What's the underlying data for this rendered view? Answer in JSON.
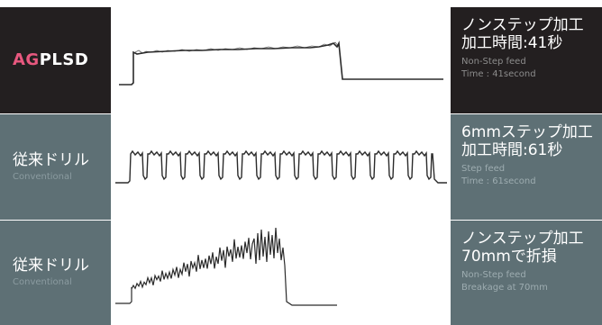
{
  "rows": [
    {
      "brand": {
        "accent": "AG",
        "rest": "PLSD",
        "accent_color": "#e8587f"
      },
      "info": {
        "title_line1": "ノンステップ加工",
        "title_line2": "加工時間:41秒",
        "sub_line1": "Non-Step feed",
        "sub_line2": "Time : 41second"
      }
    },
    {
      "label_jp": "従来ドリル",
      "label_en": "Conventional",
      "info": {
        "title_line1": "6mmステップ加工",
        "title_line2": "加工時間:61秒",
        "sub_line1": "Step feed",
        "sub_line2": "Time : 61second"
      }
    },
    {
      "label_jp": "従来ドリル",
      "label_en": "Conventional",
      "info": {
        "title_line1": "ノンステップ加工",
        "title_line2": "70mmで折損",
        "sub_line1": "Non-Step feed",
        "sub_line2": "Breakage at 70mm"
      }
    }
  ],
  "colors": {
    "dark_panel": "#231f20",
    "slate_panel": "#5e7075",
    "accent": "#e8587f"
  }
}
